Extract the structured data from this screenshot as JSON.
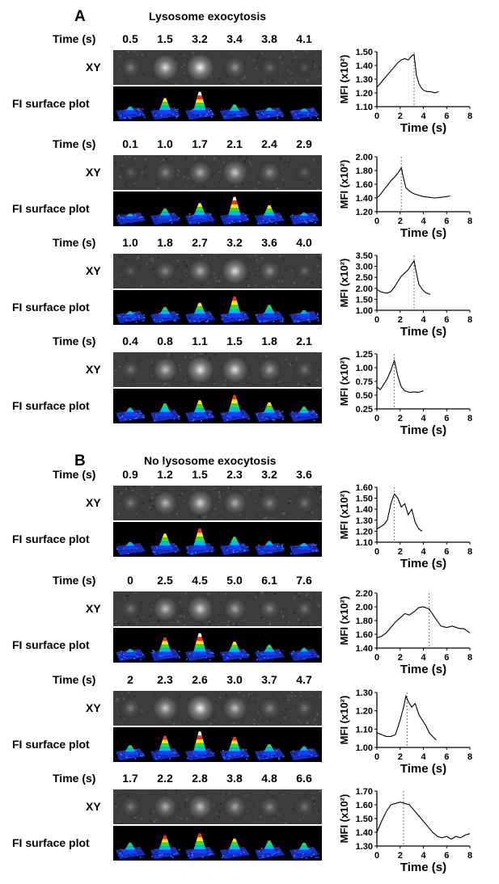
{
  "labels": {
    "time_label": "Time (s)",
    "xy_label": "XY",
    "surface_label": "FI surface plot",
    "x_axis_label": "Time (s)",
    "y_axis_label": "MFI (x10²)"
  },
  "panels": [
    {
      "letter": "A",
      "title": "Lysosome exocytosis",
      "rows": [
        {
          "times": [
            "0.5",
            "1.5",
            "3.2",
            "3.4",
            "3.8",
            "4.1"
          ],
          "xy_intensity": [
            0.35,
            0.85,
            0.95,
            0.45,
            0.25,
            0.15
          ],
          "peak_height": [
            0.2,
            0.6,
            0.9,
            0.3,
            0.15,
            0.1
          ],
          "chart": {
            "type": "line",
            "xlim": [
              0,
              8
            ],
            "xticks": [
              "0",
              "2",
              "4",
              "6",
              "8"
            ],
            "ylim": [
              1.1,
              1.5
            ],
            "yticks": [
              "1.10",
              "1.20",
              "1.30",
              "1.40",
              "1.50"
            ],
            "marker_x": 3.2,
            "x": [
              0,
              0.3,
              0.6,
              0.9,
              1.2,
              1.5,
              1.8,
              2.1,
              2.4,
              2.7,
              3.0,
              3.2,
              3.4,
              3.6,
              3.8,
              4.0,
              4.3,
              4.6,
              5.0,
              5.3
            ],
            "y": [
              1.24,
              1.27,
              1.3,
              1.33,
              1.36,
              1.39,
              1.42,
              1.44,
              1.45,
              1.44,
              1.47,
              1.48,
              1.33,
              1.27,
              1.24,
              1.22,
              1.21,
              1.21,
              1.2,
              1.21
            ]
          }
        },
        {
          "times": [
            "0.1",
            "1.0",
            "1.7",
            "2.1",
            "2.4",
            "2.9"
          ],
          "xy_intensity": [
            0.2,
            0.4,
            0.6,
            0.75,
            0.45,
            0.2
          ],
          "peak_height": [
            0.1,
            0.35,
            0.6,
            0.9,
            0.5,
            0.15
          ],
          "chart": {
            "type": "line",
            "xlim": [
              0,
              8
            ],
            "xticks": [
              "0",
              "2",
              "4",
              "6",
              "8"
            ],
            "ylim": [
              1.2,
              2.0
            ],
            "yticks": [
              "1.20",
              "1.40",
              "1.60",
              "1.80",
              "2.00"
            ],
            "marker_x": 2.1,
            "x": [
              0,
              0.3,
              0.6,
              0.9,
              1.2,
              1.5,
              1.8,
              2.1,
              2.3,
              2.5,
              2.8,
              3.2,
              3.6,
              4.0,
              4.5,
              5.0,
              5.5,
              6.0,
              6.3
            ],
            "y": [
              1.4,
              1.45,
              1.52,
              1.58,
              1.65,
              1.7,
              1.76,
              1.84,
              1.68,
              1.55,
              1.5,
              1.46,
              1.44,
              1.42,
              1.41,
              1.4,
              1.41,
              1.42,
              1.43
            ]
          }
        },
        {
          "times": [
            "1.0",
            "1.8",
            "2.7",
            "3.2",
            "3.6",
            "4.0"
          ],
          "xy_intensity": [
            0.2,
            0.4,
            0.6,
            0.85,
            0.45,
            0.25
          ],
          "peak_height": [
            0.15,
            0.35,
            0.55,
            0.85,
            0.45,
            0.2
          ],
          "chart": {
            "type": "line",
            "xlim": [
              0,
              8
            ],
            "xticks": [
              "0",
              "2",
              "4",
              "6",
              "8"
            ],
            "ylim": [
              1.0,
              3.5
            ],
            "yticks": [
              "1.00",
              "1.50",
              "2.00",
              "2.50",
              "3.00",
              "3.50"
            ],
            "marker_x": 3.2,
            "x": [
              0,
              0.3,
              0.6,
              0.9,
              1.2,
              1.5,
              1.8,
              2.1,
              2.4,
              2.7,
              3.0,
              3.2,
              3.4,
              3.6,
              3.9,
              4.2,
              4.6
            ],
            "y": [
              1.95,
              1.85,
              1.8,
              1.78,
              1.85,
              2.05,
              2.3,
              2.55,
              2.7,
              2.85,
              3.1,
              3.25,
              2.7,
              2.2,
              1.95,
              1.8,
              1.72
            ]
          }
        },
        {
          "times": [
            "0.4",
            "0.8",
            "1.1",
            "1.5",
            "1.8",
            "2.1"
          ],
          "xy_intensity": [
            0.3,
            0.7,
            0.9,
            0.85,
            0.55,
            0.3
          ],
          "peak_height": [
            0.25,
            0.45,
            0.6,
            0.85,
            0.5,
            0.3
          ],
          "chart": {
            "type": "line",
            "xlim": [
              0,
              8
            ],
            "xticks": [
              "0",
              "2",
              "4",
              "6",
              "8"
            ],
            "ylim": [
              0.25,
              1.25
            ],
            "yticks": [
              "0.25",
              "0.50",
              "0.75",
              "1.00",
              "1.25"
            ],
            "marker_x": 1.5,
            "x": [
              0,
              0.3,
              0.6,
              0.9,
              1.2,
              1.5,
              1.8,
              2.1,
              2.4,
              2.8,
              3.2,
              3.6,
              4.0
            ],
            "y": [
              0.65,
              0.6,
              0.7,
              0.8,
              0.95,
              1.13,
              0.85,
              0.65,
              0.58,
              0.55,
              0.56,
              0.55,
              0.58
            ]
          }
        }
      ]
    },
    {
      "letter": "B",
      "title": "No lysosome exocytosis",
      "rows": [
        {
          "times": [
            "0.9",
            "1.2",
            "1.5",
            "2.3",
            "3.2",
            "3.6"
          ],
          "xy_intensity": [
            0.35,
            0.65,
            0.8,
            0.6,
            0.4,
            0.3
          ],
          "peak_height": [
            0.2,
            0.6,
            0.85,
            0.45,
            0.25,
            0.15
          ],
          "chart": {
            "type": "line",
            "xlim": [
              0,
              8
            ],
            "xticks": [
              "0",
              "2",
              "4",
              "6",
              "8"
            ],
            "ylim": [
              1.1,
              1.6
            ],
            "yticks": [
              "1.10",
              "1.20",
              "1.30",
              "1.40",
              "1.50",
              "1.60"
            ],
            "marker_x": 1.5,
            "x": [
              0,
              0.3,
              0.6,
              0.9,
              1.2,
              1.5,
              1.8,
              2.1,
              2.4,
              2.7,
              3.0,
              3.3,
              3.6,
              3.9
            ],
            "y": [
              1.22,
              1.24,
              1.26,
              1.3,
              1.45,
              1.54,
              1.5,
              1.42,
              1.45,
              1.35,
              1.4,
              1.28,
              1.22,
              1.2
            ]
          }
        },
        {
          "times": [
            "0",
            "2.5",
            "4.5",
            "5.0",
            "6.1",
            "7.6"
          ],
          "xy_intensity": [
            0.3,
            0.7,
            0.8,
            0.55,
            0.4,
            0.3
          ],
          "peak_height": [
            0.15,
            0.7,
            0.9,
            0.5,
            0.35,
            0.2
          ],
          "chart": {
            "type": "line",
            "xlim": [
              0,
              8
            ],
            "xticks": [
              "0",
              "2",
              "4",
              "6",
              "8"
            ],
            "ylim": [
              1.4,
              2.2
            ],
            "yticks": [
              "1.40",
              "1.60",
              "1.80",
              "2.00",
              "2.20"
            ],
            "marker_x": 4.5,
            "x": [
              0,
              0.4,
              0.8,
              1.2,
              1.6,
              2.0,
              2.4,
              2.8,
              3.2,
              3.6,
              4.0,
              4.5,
              5.0,
              5.5,
              6.0,
              6.5,
              7.0,
              7.5,
              8.0
            ],
            "y": [
              1.55,
              1.57,
              1.62,
              1.7,
              1.78,
              1.84,
              1.9,
              1.88,
              1.93,
              1.99,
              2.0,
              1.97,
              1.84,
              1.72,
              1.7,
              1.72,
              1.69,
              1.68,
              1.62
            ]
          }
        },
        {
          "times": [
            "2",
            "2.3",
            "2.6",
            "3.0",
            "3.7",
            "4.7"
          ],
          "xy_intensity": [
            0.35,
            0.75,
            0.95,
            0.7,
            0.4,
            0.3
          ],
          "peak_height": [
            0.3,
            0.75,
            0.95,
            0.7,
            0.35,
            0.25
          ],
          "chart": {
            "type": "line",
            "xlim": [
              0,
              8
            ],
            "xticks": [
              "0",
              "2",
              "4",
              "6",
              "8"
            ],
            "ylim": [
              1.0,
              1.3
            ],
            "yticks": [
              "1.00",
              "1.10",
              "1.20",
              "1.30"
            ],
            "marker_x": 2.6,
            "x": [
              0,
              0.4,
              0.8,
              1.2,
              1.6,
              2.0,
              2.3,
              2.5,
              2.7,
              3.0,
              3.3,
              3.6,
              3.9,
              4.2,
              4.5,
              4.8,
              5.1
            ],
            "y": [
              1.08,
              1.07,
              1.06,
              1.06,
              1.07,
              1.15,
              1.22,
              1.28,
              1.25,
              1.22,
              1.24,
              1.18,
              1.15,
              1.12,
              1.08,
              1.06,
              1.04
            ]
          }
        },
        {
          "times": [
            "1.7",
            "2.2",
            "2.8",
            "3.8",
            "4.8",
            "6.6"
          ],
          "xy_intensity": [
            0.35,
            0.6,
            0.7,
            0.55,
            0.4,
            0.3
          ],
          "peak_height": [
            0.35,
            0.7,
            0.8,
            0.55,
            0.45,
            0.35
          ],
          "chart": {
            "type": "line",
            "xlim": [
              0,
              8
            ],
            "xticks": [
              "0",
              "2",
              "4",
              "6",
              "8"
            ],
            "ylim": [
              1.3,
              1.7
            ],
            "yticks": [
              "1.30",
              "1.40",
              "1.50",
              "1.60",
              "1.70"
            ],
            "marker_x": 2.3,
            "x": [
              0,
              0.4,
              0.8,
              1.2,
              1.6,
              2.0,
              2.4,
              2.8,
              3.2,
              3.6,
              4.0,
              4.4,
              4.8,
              5.2,
              5.6,
              6.0,
              6.4,
              6.8,
              7.2,
              7.6,
              8.0
            ],
            "y": [
              1.4,
              1.48,
              1.55,
              1.6,
              1.61,
              1.62,
              1.61,
              1.6,
              1.56,
              1.52,
              1.48,
              1.44,
              1.4,
              1.37,
              1.36,
              1.37,
              1.35,
              1.37,
              1.36,
              1.38,
              1.39
            ]
          }
        }
      ]
    }
  ]
}
